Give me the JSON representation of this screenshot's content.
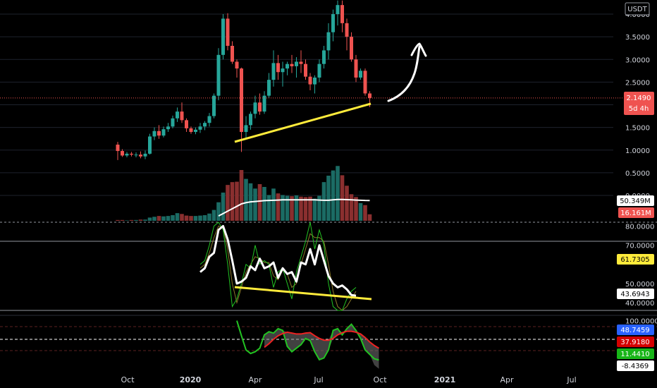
{
  "symbol_currency": "USDT",
  "colors": {
    "background": "#000000",
    "up": "#26a69a",
    "down": "#ef5350",
    "vol_up": "#1b6b64",
    "vol_down": "#8a2f2f",
    "trendline": "#ffeb3b",
    "ma_line": "#ffffff",
    "rsi_line": "#ffffff",
    "stoch_green": "#22c322",
    "stoch_orange": "#c05a1a",
    "stoch_olive": "#8a7a2a",
    "osc_green": "#22c322",
    "osc_red": "#ee2222",
    "osc_fill": "#777777",
    "grid": "#1e222d",
    "price_line": "#ef5350"
  },
  "x_axis_labels": [
    {
      "label": "Oct",
      "bold": false
    },
    {
      "label": "2020",
      "bold": true
    },
    {
      "label": "Apr",
      "bold": false
    },
    {
      "label": "Jul",
      "bold": false
    },
    {
      "label": "Oct",
      "bold": false
    },
    {
      "label": "2021",
      "bold": true
    },
    {
      "label": "Apr",
      "bold": false
    },
    {
      "label": "Jul",
      "bold": false
    }
  ],
  "chart_data": [
    {
      "panel": "price",
      "type": "candlestick",
      "unit": "USDT",
      "timeframe": "5d",
      "y_ticks": [
        "4.0000",
        "3.5000",
        "3.0000",
        "2.5000",
        "2.0000",
        "1.5000",
        "1.0000",
        "0.5000",
        "0.0000"
      ],
      "ylim": [
        0,
        4.0
      ],
      "last_price": "2.1490",
      "countdown": "5d 4h",
      "candles": [
        [
          1.12,
          1.18,
          0.78,
          0.98
        ],
        [
          0.98,
          1.02,
          0.85,
          0.88
        ],
        [
          0.88,
          0.96,
          0.84,
          0.92
        ],
        [
          0.92,
          0.96,
          0.86,
          0.9
        ],
        [
          0.9,
          0.95,
          0.84,
          0.9
        ],
        [
          0.9,
          0.97,
          0.82,
          0.86
        ],
        [
          0.86,
          0.99,
          0.8,
          0.92
        ],
        [
          0.92,
          1.36,
          0.9,
          1.3
        ],
        [
          1.3,
          1.5,
          1.22,
          1.42
        ],
        [
          1.42,
          1.55,
          1.25,
          1.32
        ],
        [
          1.32,
          1.52,
          1.28,
          1.46
        ],
        [
          1.46,
          1.6,
          1.4,
          1.52
        ],
        [
          1.52,
          1.76,
          1.48,
          1.7
        ],
        [
          1.7,
          1.94,
          1.62,
          1.85
        ],
        [
          1.85,
          2.05,
          1.6,
          1.66
        ],
        [
          1.66,
          1.7,
          1.4,
          1.48
        ],
        [
          1.48,
          1.52,
          1.36,
          1.4
        ],
        [
          1.4,
          1.5,
          1.35,
          1.45
        ],
        [
          1.45,
          1.6,
          1.38,
          1.52
        ],
        [
          1.52,
          1.64,
          1.44,
          1.6
        ],
        [
          1.6,
          1.82,
          1.52,
          1.75
        ],
        [
          1.75,
          2.25,
          1.7,
          2.2
        ],
        [
          2.2,
          3.25,
          2.1,
          3.1
        ],
        [
          3.1,
          4.0,
          3.0,
          3.9
        ],
        [
          3.9,
          4.02,
          3.2,
          3.3
        ],
        [
          3.3,
          3.4,
          2.9,
          2.95
        ],
        [
          2.95,
          3.0,
          2.6,
          2.8
        ],
        [
          2.8,
          2.82,
          0.96,
          1.4
        ],
        [
          1.4,
          1.75,
          1.25,
          1.55
        ],
        [
          1.55,
          1.85,
          1.45,
          1.8
        ],
        [
          1.8,
          2.2,
          1.7,
          2.05
        ],
        [
          2.05,
          2.25,
          1.78,
          1.85
        ],
        [
          1.85,
          2.3,
          1.8,
          2.2
        ],
        [
          2.2,
          2.7,
          2.15,
          2.55
        ],
        [
          2.55,
          3.2,
          2.4,
          2.92
        ],
        [
          2.92,
          3.1,
          2.55,
          2.72
        ],
        [
          2.72,
          2.95,
          2.4,
          2.8
        ],
        [
          2.8,
          2.95,
          2.65,
          2.9
        ],
        [
          2.9,
          3.1,
          2.7,
          2.85
        ],
        [
          2.85,
          3.05,
          2.6,
          2.95
        ],
        [
          2.95,
          3.2,
          2.7,
          2.9
        ],
        [
          2.9,
          3.0,
          2.55,
          2.62
        ],
        [
          2.62,
          2.7,
          2.32,
          2.45
        ],
        [
          2.45,
          2.65,
          2.25,
          2.6
        ],
        [
          2.6,
          3.0,
          2.5,
          2.9
        ],
        [
          2.9,
          3.3,
          2.8,
          3.2
        ],
        [
          3.2,
          3.8,
          3.0,
          3.6
        ],
        [
          3.6,
          4.1,
          3.4,
          4.0
        ],
        [
          4.0,
          4.3,
          3.75,
          4.2
        ],
        [
          4.2,
          4.3,
          3.6,
          3.8
        ],
        [
          3.8,
          3.9,
          3.2,
          3.5
        ],
        [
          3.5,
          3.6,
          2.95,
          3.0
        ],
        [
          3.0,
          3.1,
          2.5,
          2.6
        ],
        [
          2.6,
          2.8,
          2.55,
          2.75
        ],
        [
          2.75,
          2.8,
          2.2,
          2.25
        ],
        [
          2.25,
          2.3,
          1.95,
          2.149
        ]
      ]
    },
    {
      "panel": "volume",
      "type": "bar",
      "unit": "M",
      "values": [
        2,
        2,
        1,
        2,
        2,
        3,
        3,
        8,
        10,
        12,
        11,
        12,
        14,
        19,
        17,
        13,
        12,
        12,
        13,
        14,
        18,
        27,
        46,
        70,
        89,
        96,
        97,
        126,
        104,
        93,
        80,
        91,
        84,
        64,
        80,
        68,
        64,
        62,
        61,
        63,
        60,
        59,
        60,
        55,
        62,
        96,
        112,
        125,
        136,
        113,
        87,
        66,
        59,
        44,
        39,
        16.161
      ],
      "ma_values": [
        null,
        null,
        null,
        null,
        null,
        null,
        null,
        null,
        null,
        null,
        null,
        null,
        null,
        null,
        null,
        null,
        null,
        null,
        null,
        null,
        null,
        null,
        12,
        18,
        24,
        30,
        36,
        42,
        45,
        47,
        48,
        49,
        50,
        50.5,
        51,
        51.5,
        52,
        52,
        52,
        52,
        52,
        52,
        52,
        52,
        51.5,
        51,
        51,
        52,
        53,
        53,
        52.5,
        52,
        51.5,
        51,
        50.5,
        50.349
      ],
      "ma_last": "50.349M",
      "last": "16.161M"
    },
    {
      "panel": "rsi",
      "type": "line",
      "y_ticks": [
        "80.0000",
        "70.0000",
        "50.0000",
        "40.0000"
      ],
      "ylim": [
        36,
        82
      ],
      "rsi_x_start": 18,
      "rsi": [
        56,
        58,
        64,
        66,
        78,
        80,
        73,
        62,
        50,
        51,
        53,
        59,
        57,
        63,
        58,
        59,
        61,
        53,
        58,
        55,
        56,
        51,
        61,
        60,
        68,
        60,
        70,
        62,
        54,
        50,
        48,
        49,
        47,
        44,
        43.6943
      ],
      "stoch_x_start": 18,
      "stoch_k": [
        60,
        62,
        70,
        80,
        82,
        78,
        60,
        38,
        42,
        50,
        60,
        58,
        70,
        60,
        62,
        60,
        48,
        56,
        58,
        50,
        42,
        56,
        64,
        72,
        82,
        68,
        78,
        70,
        50,
        38,
        32,
        36,
        42,
        46,
        48
      ],
      "stoch_d": [
        58,
        60,
        66,
        74,
        80,
        79,
        68,
        50,
        40,
        48,
        56,
        60,
        64,
        63,
        61,
        61,
        54,
        52,
        57,
        55,
        48,
        50,
        60,
        68,
        76,
        74,
        74,
        72,
        60,
        46,
        38,
        34,
        38,
        42,
        46
      ],
      "signal_last": "61.7305",
      "rsi_last": "43.6943"
    },
    {
      "panel": "oscillator",
      "type": "line",
      "y_ticks": [
        "100.0000"
      ],
      "ylim": [
        -12,
        112
      ],
      "x_start": 26,
      "green": [
        100,
        66,
        34,
        26,
        30,
        38,
        68,
        75,
        72,
        82,
        78,
        42,
        30,
        38,
        46,
        60,
        55,
        30,
        12,
        16,
        34,
        78,
        82,
        68,
        82,
        92,
        78,
        60,
        34,
        24,
        14,
        11.441
      ],
      "red": [
        null,
        null,
        null,
        null,
        null,
        null,
        40,
        48,
        58,
        66,
        71,
        74,
        72,
        70,
        70,
        72,
        73,
        66,
        60,
        56,
        56,
        60,
        68,
        73,
        76,
        76,
        74,
        70,
        62,
        52,
        44,
        37.918
      ],
      "fill_min": [
        null,
        null,
        null,
        null,
        null,
        null,
        40,
        48,
        58,
        66,
        71,
        42,
        30,
        38,
        46,
        60,
        55,
        30,
        12,
        16,
        34,
        60,
        68,
        68,
        76,
        76,
        74,
        60,
        34,
        24,
        0,
        -8.4369
      ],
      "value_a": "48.7459",
      "value_b": "37.9180",
      "value_c": "11.4410",
      "value_d": "-8.4369"
    }
  ]
}
